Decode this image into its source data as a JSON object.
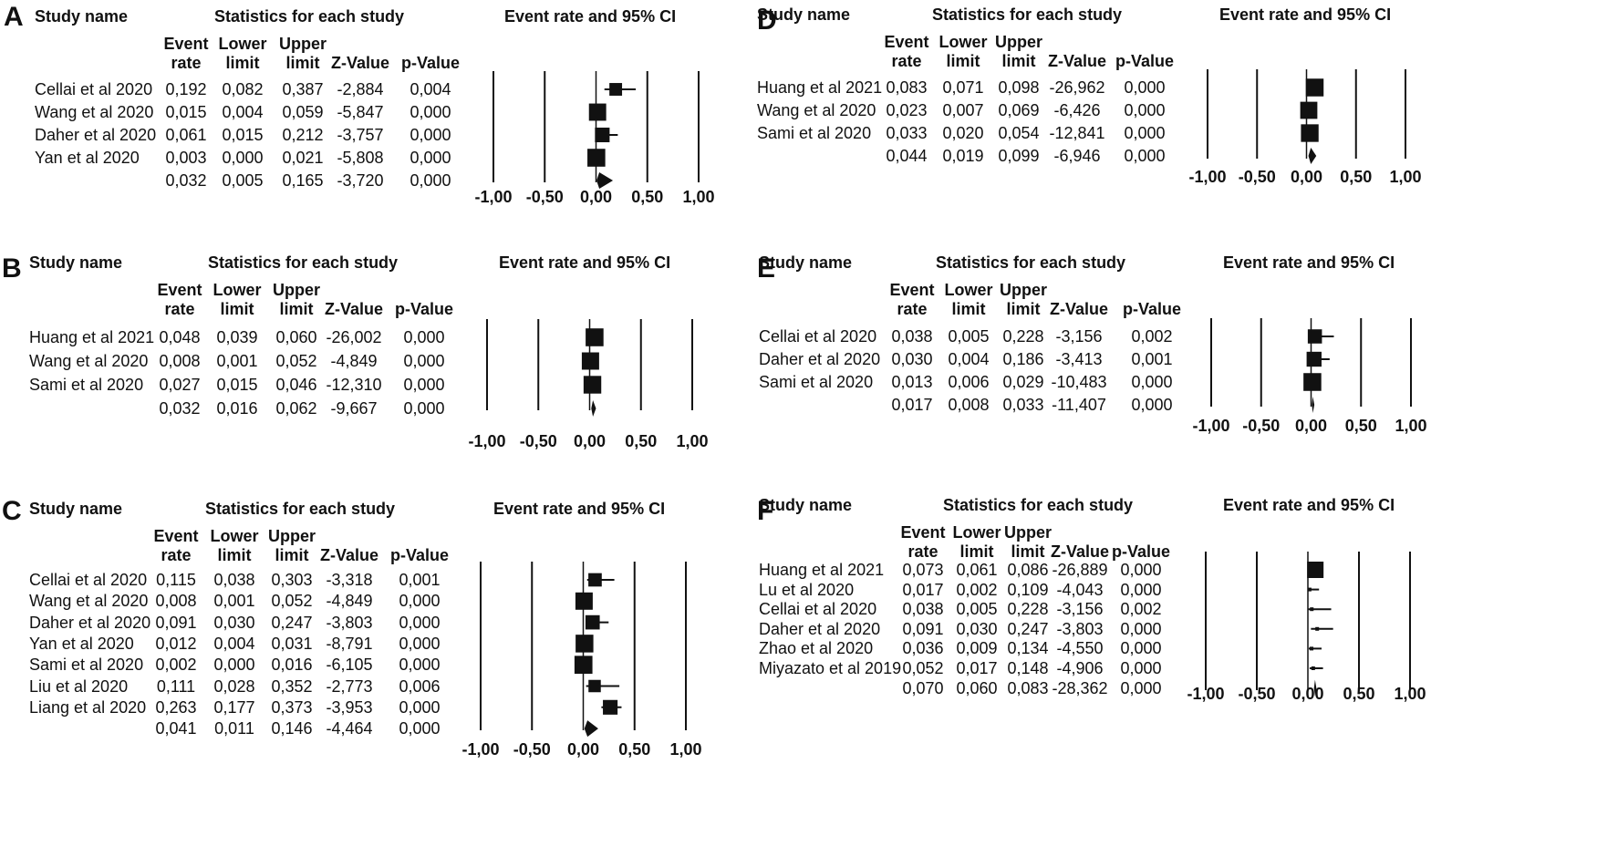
{
  "headers": {
    "study_name": "Study name",
    "statistics": "Statistics for each study",
    "ci": "Event rate and 95% CI",
    "col_rate": "Event\nrate",
    "col_lower": "Lower\nlimit",
    "col_upper": "Upper\nlimit",
    "col_z": "Z-Value",
    "col_p": "p-Value"
  },
  "chart_data": [
    {
      "type": "forest",
      "panel": "A",
      "xlim": [
        -1,
        1
      ],
      "ticks": [
        "-1,00",
        "-0,50",
        "0,00",
        "0,50",
        "1,00"
      ],
      "rows": [
        {
          "study": "Cellai et al 2020",
          "rate": "0,192",
          "lower": "0,082",
          "upper": "0,387",
          "z": "-2,884",
          "p": "0,004"
        },
        {
          "study": "Wang et al 2020",
          "rate": "0,015",
          "lower": "0,004",
          "upper": "0,059",
          "z": "-5,847",
          "p": "0,000"
        },
        {
          "study": "Daher et al 2020",
          "rate": "0,061",
          "lower": "0,015",
          "upper": "0,212",
          "z": "-3,757",
          "p": "0,000"
        },
        {
          "study": "Yan et al 2020",
          "rate": "0,003",
          "lower": "0,000",
          "upper": "0,021",
          "z": "-5,808",
          "p": "0,000"
        }
      ],
      "pooled": {
        "rate": "0,032",
        "lower": "0,005",
        "upper": "0,165",
        "z": "-3,720",
        "p": "0,000"
      }
    },
    {
      "type": "forest",
      "panel": "B",
      "xlim": [
        -1,
        1
      ],
      "ticks": [
        "-1,00",
        "-0,50",
        "0,00",
        "0,50",
        "1,00"
      ],
      "rows": [
        {
          "study": "Huang et al 2021",
          "rate": "0,048",
          "lower": "0,039",
          "upper": "0,060",
          "z": "-26,002",
          "p": "0,000"
        },
        {
          "study": "Wang et al 2020",
          "rate": "0,008",
          "lower": "0,001",
          "upper": "0,052",
          "z": "-4,849",
          "p": "0,000"
        },
        {
          "study": "Sami et al 2020",
          "rate": "0,027",
          "lower": "0,015",
          "upper": "0,046",
          "z": "-12,310",
          "p": "0,000"
        }
      ],
      "pooled": {
        "rate": "0,032",
        "lower": "0,016",
        "upper": "0,062",
        "z": "-9,667",
        "p": "0,000"
      }
    },
    {
      "type": "forest",
      "panel": "C",
      "xlim": [
        -1,
        1
      ],
      "ticks": [
        "-1,00",
        "-0,50",
        "0,00",
        "0,50",
        "1,00"
      ],
      "rows": [
        {
          "study": "Cellai et al 2020",
          "rate": "0,115",
          "lower": "0,038",
          "upper": "0,303",
          "z": "-3,318",
          "p": "0,001"
        },
        {
          "study": "Wang et al 2020",
          "rate": "0,008",
          "lower": "0,001",
          "upper": "0,052",
          "z": "-4,849",
          "p": "0,000"
        },
        {
          "study": "Daher et al 2020",
          "rate": "0,091",
          "lower": "0,030",
          "upper": "0,247",
          "z": "-3,803",
          "p": "0,000"
        },
        {
          "study": "Yan et al 2020",
          "rate": "0,012",
          "lower": "0,004",
          "upper": "0,031",
          "z": "-8,791",
          "p": "0,000"
        },
        {
          "study": "Sami et al 2020",
          "rate": "0,002",
          "lower": "0,000",
          "upper": "0,016",
          "z": "-6,105",
          "p": "0,000"
        },
        {
          "study": "Liu et al 2020",
          "rate": "0,111",
          "lower": "0,028",
          "upper": "0,352",
          "z": "-2,773",
          "p": "0,006"
        },
        {
          "study": "Liang et al 2020",
          "rate": "0,263",
          "lower": "0,177",
          "upper": "0,373",
          "z": "-3,953",
          "p": "0,000"
        }
      ],
      "pooled": {
        "rate": "0,041",
        "lower": "0,011",
        "upper": "0,146",
        "z": "-4,464",
        "p": "0,000"
      }
    },
    {
      "type": "forest",
      "panel": "D",
      "xlim": [
        -1,
        1
      ],
      "ticks": [
        "-1,00",
        "-0,50",
        "0,00",
        "0,50",
        "1,00"
      ],
      "rows": [
        {
          "study": "Huang et al 2021",
          "rate": "0,083",
          "lower": "0,071",
          "upper": "0,098",
          "z": "-26,962",
          "p": "0,000"
        },
        {
          "study": "Wang et al 2020",
          "rate": "0,023",
          "lower": "0,007",
          "upper": "0,069",
          "z": "-6,426",
          "p": "0,000"
        },
        {
          "study": "Sami et al 2020",
          "rate": "0,033",
          "lower": "0,020",
          "upper": "0,054",
          "z": "-12,841",
          "p": "0,000"
        }
      ],
      "pooled": {
        "rate": "0,044",
        "lower": "0,019",
        "upper": "0,099",
        "z": "-6,946",
        "p": "0,000"
      }
    },
    {
      "type": "forest",
      "panel": "E",
      "xlim": [
        -1,
        1
      ],
      "ticks": [
        "-1,00",
        "-0,50",
        "0,00",
        "0,50",
        "1,00"
      ],
      "rows": [
        {
          "study": "Cellai et al 2020",
          "rate": "0,038",
          "lower": "0,005",
          "upper": "0,228",
          "z": "-3,156",
          "p": "0,002"
        },
        {
          "study": "Daher et al 2020",
          "rate": "0,030",
          "lower": "0,004",
          "upper": "0,186",
          "z": "-3,413",
          "p": "0,001"
        },
        {
          "study": "Sami et al 2020",
          "rate": "0,013",
          "lower": "0,006",
          "upper": "0,029",
          "z": "-10,483",
          "p": "0,000"
        }
      ],
      "pooled": {
        "rate": "0,017",
        "lower": "0,008",
        "upper": "0,033",
        "z": "-11,407",
        "p": "0,000"
      }
    },
    {
      "type": "forest",
      "panel": "F",
      "xlim": [
        -1,
        1
      ],
      "ticks": [
        "-1,00",
        "-0,50",
        "0,00",
        "0,50",
        "1,00"
      ],
      "rows": [
        {
          "study": "Huang et al 2021",
          "rate": "0,073",
          "lower": "0,061",
          "upper": "0,086",
          "z": "-26,889",
          "p": "0,000"
        },
        {
          "study": "Lu et al 2020",
          "rate": "0,017",
          "lower": "0,002",
          "upper": "0,109",
          "z": "-4,043",
          "p": "0,000"
        },
        {
          "study": "Cellai et al 2020",
          "rate": "0,038",
          "lower": "0,005",
          "upper": "0,228",
          "z": "-3,156",
          "p": "0,002"
        },
        {
          "study": "Daher et al 2020",
          "rate": "0,091",
          "lower": "0,030",
          "upper": "0,247",
          "z": "-3,803",
          "p": "0,000"
        },
        {
          "study": "Zhao et al 2020",
          "rate": "0,036",
          "lower": "0,009",
          "upper": "0,134",
          "z": "-4,550",
          "p": "0,000"
        },
        {
          "study": "Miyazato et al 2019",
          "rate": "0,052",
          "lower": "0,017",
          "upper": "0,148",
          "z": "-4,906",
          "p": "0,000"
        }
      ],
      "pooled": {
        "rate": "0,070",
        "lower": "0,060",
        "upper": "0,083",
        "z": "-28,362",
        "p": "0,000"
      }
    }
  ]
}
